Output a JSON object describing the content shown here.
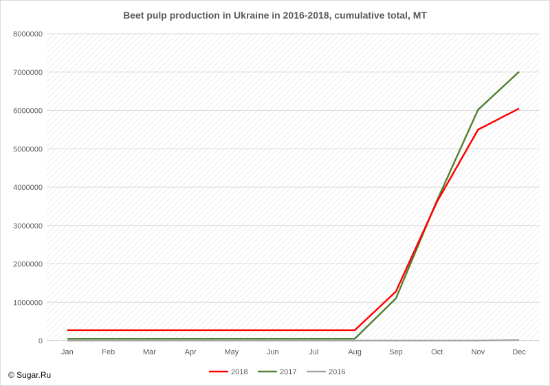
{
  "chart_data": {
    "type": "line",
    "title": "Beet pulp production in Ukraine in 2016-2018, cumulative total, MT",
    "xlabel": "",
    "ylabel": "",
    "categories": [
      "Jan",
      "Feb",
      "Mar",
      "Apr",
      "May",
      "Jun",
      "Jul",
      "Aug",
      "Sep",
      "Oct",
      "Nov",
      "Dec"
    ],
    "ylim": [
      0,
      8000000
    ],
    "yticks": [
      0,
      1000000,
      2000000,
      3000000,
      4000000,
      5000000,
      6000000,
      7000000,
      8000000
    ],
    "grid": true,
    "legend_position": "bottom",
    "series": [
      {
        "name": "2018",
        "color": "#ff0000",
        "values": [
          270000,
          270000,
          270000,
          270000,
          270000,
          270000,
          270000,
          270000,
          1280000,
          3620000,
          5500000,
          6050000
        ]
      },
      {
        "name": "2017",
        "color": "#548235",
        "values": [
          50000,
          50000,
          50000,
          50000,
          50000,
          50000,
          50000,
          50000,
          1100000,
          3650000,
          6020000,
          7010000
        ]
      },
      {
        "name": "2016",
        "color": "#a5a5a5",
        "values": [
          0,
          0,
          0,
          0,
          0,
          0,
          0,
          0,
          0,
          0,
          0,
          10000
        ]
      }
    ]
  },
  "footer": {
    "copyright": "© Sugar.Ru"
  }
}
